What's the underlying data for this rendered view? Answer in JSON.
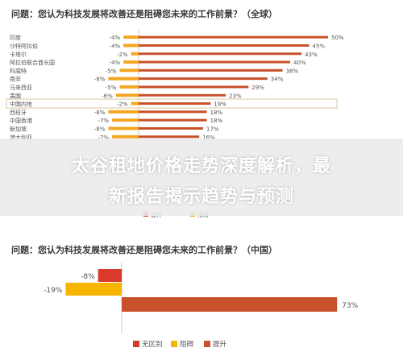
{
  "chart_data": [
    {
      "type": "bar",
      "title": "问题：您认为科技发展将改善还是阻碍您未来的工作前景？（全球）",
      "categories": [
        "印度",
        "沙特阿拉伯",
        "卡塔尔",
        "阿拉伯联合酋长国",
        "科威特",
        "南非",
        "马来西亚",
        "美国",
        "中国内地",
        "西班牙",
        "中国香港",
        "新加坡",
        "澳大利亚"
      ],
      "series": [
        {
          "name": "阻碍",
          "color": "#F5A623",
          "values": [
            -4,
            -4,
            -2,
            -4,
            -5,
            -8,
            -5,
            -6,
            -2,
            -8,
            -7,
            -8,
            -7
          ]
        },
        {
          "name": "提升",
          "color": "#C8502A",
          "values": [
            50,
            45,
            43,
            40,
            38,
            34,
            29,
            23,
            19,
            18,
            18,
            17,
            16
          ]
        }
      ],
      "highlight": "中国内地",
      "value_labels": {
        "negative": [
          "-4%",
          "-4%",
          "-2%",
          "-4%",
          "-5%",
          "-8%",
          "-5%",
          "-6%",
          "-2%",
          "-8%",
          "-7%",
          "-8%",
          "-7%"
        ],
        "positive": [
          "50%",
          "45%",
          "43%",
          "40%",
          "38%",
          "34%",
          "29%",
          "23%",
          "19%",
          "18%",
          "18%",
          "17%",
          "16%"
        ]
      },
      "legend_partial": [
        "提升",
        "阻碍"
      ]
    },
    {
      "type": "bar",
      "title": "问题：您认为科技发展将改善还是阻碍您未来的工作前景？（中国）",
      "series": [
        {
          "name": "无区别",
          "color": "#D93A2B",
          "value": -8,
          "label": "-8%"
        },
        {
          "name": "阻碍",
          "color": "#F7B500",
          "value": -19,
          "label": "-19%"
        },
        {
          "name": "提升",
          "color": "#C8502A",
          "value": 73,
          "label": "73%"
        }
      ],
      "legend": [
        "无区别",
        "阻碍",
        "提升"
      ]
    }
  ],
  "banner": {
    "line1": "太谷租地价格走势深度解析，最",
    "line2": "新报告揭示趋势与预测"
  }
}
